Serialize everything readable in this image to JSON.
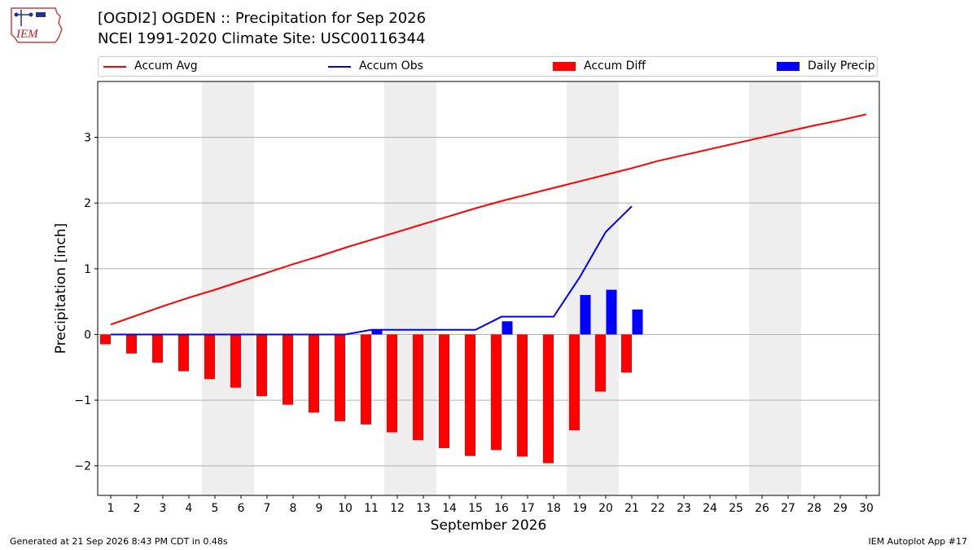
{
  "logo": {
    "text": "IEM"
  },
  "title": {
    "line1": "[OGDI2] OGDEN :: Precipitation for Sep 2026",
    "line2": "NCEI 1991-2020 Climate Site: USC00116344"
  },
  "legend": {
    "placement": "top, above plot",
    "items": [
      {
        "label": "Accum Avg",
        "kind": "line",
        "color": "#ff0000"
      },
      {
        "label": "Accum Obs",
        "kind": "line",
        "color": "#0000ff"
      },
      {
        "label": "Accum Diff",
        "kind": "bar",
        "color": "#ff0000"
      },
      {
        "label": "Daily Precip",
        "kind": "bar",
        "color": "#0000ff"
      }
    ]
  },
  "footer": {
    "left": "Generated at 21 Sep 2026 8:43 PM CDT in 0.48s",
    "right": "IEM Autoplot App #17"
  },
  "chart_data": {
    "type": "bar",
    "xlabel": "September 2026",
    "ylabel": "Precipitation [inch]",
    "xlim": [
      0.5,
      30.5
    ],
    "ylim": [
      -2.45,
      3.85
    ],
    "yticks": [
      -2,
      -1,
      0,
      1,
      2,
      3
    ],
    "ytick_labels": [
      "−2",
      "−1",
      "0",
      "1",
      "2",
      "3"
    ],
    "grid": "horizontal",
    "weekend_shading": [
      [
        4.5,
        6.5
      ],
      [
        11.5,
        13.5
      ],
      [
        18.5,
        20.5
      ],
      [
        25.5,
        27.5
      ]
    ],
    "days": [
      1,
      2,
      3,
      4,
      5,
      6,
      7,
      8,
      9,
      10,
      11,
      12,
      13,
      14,
      15,
      16,
      17,
      18,
      19,
      20,
      21,
      22,
      23,
      24,
      25,
      26,
      27,
      28,
      29,
      30
    ],
    "series": [
      {
        "name": "Accum Avg",
        "kind": "line",
        "color": "#ff0000",
        "values": [
          0.15,
          0.29,
          0.43,
          0.56,
          0.68,
          0.81,
          0.94,
          1.07,
          1.19,
          1.32,
          1.44,
          1.56,
          1.68,
          1.8,
          1.92,
          2.03,
          2.13,
          2.23,
          2.33,
          2.43,
          2.53,
          2.64,
          2.73,
          2.82,
          2.91,
          3.0,
          3.09,
          3.18,
          3.26,
          3.35
        ]
      },
      {
        "name": "Accum Obs",
        "kind": "line",
        "color": "#0000ff",
        "values": [
          0,
          0,
          0,
          0,
          0,
          0,
          0,
          0,
          0,
          0,
          0.07,
          0.07,
          0.07,
          0.07,
          0.07,
          0.27,
          0.27,
          0.27,
          0.87,
          1.56,
          1.95
        ]
      },
      {
        "name": "Accum Diff",
        "kind": "bar",
        "color": "#ff0000",
        "values": [
          -0.15,
          -0.29,
          -0.43,
          -0.56,
          -0.68,
          -0.81,
          -0.94,
          -1.07,
          -1.19,
          -1.32,
          -1.37,
          -1.49,
          -1.61,
          -1.73,
          -1.85,
          -1.76,
          -1.86,
          -1.96,
          -1.46,
          -0.87,
          -0.58
        ]
      },
      {
        "name": "Daily Precip",
        "kind": "bar",
        "color": "#0000ff",
        "values": [
          0,
          0,
          0,
          0,
          0,
          0,
          0,
          0,
          0,
          0,
          0.07,
          0,
          0,
          0,
          0,
          0.2,
          0,
          0,
          0.6,
          0.68,
          0.38
        ]
      }
    ]
  }
}
